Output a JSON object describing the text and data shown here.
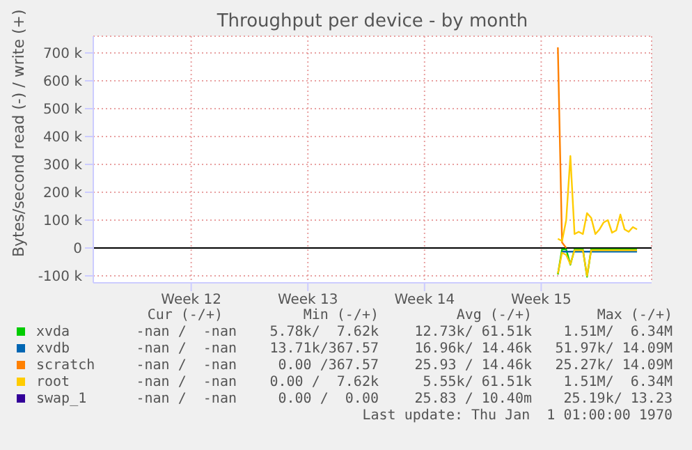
{
  "chart_data": {
    "type": "line",
    "title": "Throughput per device - by month",
    "ylabel": "Bytes/second read (-) / write (+)",
    "categories": [
      null,
      null,
      null,
      null,
      null,
      null,
      null,
      null,
      null,
      null,
      null,
      null,
      null,
      null,
      null,
      null,
      null,
      null,
      null,
      null,
      null,
      null,
      null,
      "Week 12",
      null,
      null,
      null,
      null,
      null,
      null,
      null,
      null,
      null,
      null,
      null,
      null,
      null,
      null,
      null,
      null,
      null,
      null,
      null,
      null,
      null,
      null,
      null,
      null,
      null,
      null,
      null,
      "Week 13",
      null,
      null,
      null,
      null,
      null,
      null,
      null,
      null,
      null,
      null,
      null,
      null,
      null,
      null,
      null,
      null,
      null,
      null,
      null,
      null,
      null,
      null,
      null,
      null,
      null,
      null,
      null,
      "Week 14",
      null,
      null,
      null,
      null,
      null,
      null,
      null,
      null,
      null,
      null,
      null,
      null,
      null,
      null,
      null,
      null,
      null,
      null,
      null,
      null,
      null,
      null,
      null,
      null,
      null,
      null,
      null,
      "Week 15",
      null,
      null,
      null,
      null,
      null,
      null,
      null,
      null,
      null,
      null,
      null,
      null,
      null,
      null,
      null,
      null,
      null,
      null,
      null,
      null,
      null,
      null,
      null,
      null,
      null,
      null
    ],
    "ylim": [
      -125000,
      760000
    ],
    "yticks": [
      {
        "value": -100000,
        "label": "-100 k"
      },
      0,
      {
        "value": 100000,
        "label": "100 k"
      },
      {
        "value": 200000,
        "label": "200 k"
      },
      {
        "value": 300000,
        "label": "300 k"
      },
      {
        "value": 400000,
        "label": "400 k"
      },
      {
        "value": 500000,
        "label": "500 k"
      },
      {
        "value": 600000,
        "label": "600 k"
      },
      {
        "value": 700000,
        "label": "700 k"
      }
    ],
    "grid": true,
    "legend": "bottom",
    "marker": "none",
    "line_style": "solid",
    "ref_lines": [
      {
        "axis": "y",
        "value": 0,
        "color": "#000000"
      }
    ],
    "series": [
      {
        "name": "xvda",
        "color": "#00cc00",
        "values": [
          null,
          null,
          null,
          null,
          null,
          null,
          null,
          null,
          null,
          null,
          null,
          null,
          null,
          null,
          null,
          null,
          null,
          null,
          null,
          null,
          null,
          null,
          null,
          null,
          null,
          null,
          null,
          null,
          null,
          null,
          null,
          null,
          null,
          null,
          null,
          null,
          null,
          null,
          null,
          null,
          null,
          null,
          null,
          null,
          null,
          null,
          null,
          null,
          null,
          null,
          null,
          null,
          null,
          null,
          null,
          null,
          null,
          null,
          null,
          null,
          null,
          null,
          null,
          null,
          null,
          null,
          null,
          null,
          null,
          null,
          null,
          null,
          null,
          null,
          null,
          null,
          null,
          null,
          null,
          null,
          null,
          null,
          null,
          null,
          null,
          null,
          null,
          null,
          null,
          null,
          null,
          null,
          null,
          null,
          null,
          null,
          null,
          null,
          null,
          null,
          null,
          null,
          null,
          null,
          null,
          null,
          null,
          null,
          null,
          null,
          null,
          -95000,
          -5000,
          -5000,
          -60000,
          -5000,
          -5000,
          -5000,
          -103000,
          -5000,
          -5000,
          -5000,
          -5000,
          -5000,
          -5000,
          -5000,
          -5000,
          -5000,
          -5000,
          -5000,
          -5000,
          null,
          null,
          null
        ]
      },
      {
        "name": "xvdb",
        "color": "#0066b3",
        "values": [
          null,
          null,
          null,
          null,
          null,
          null,
          null,
          null,
          null,
          null,
          null,
          null,
          null,
          null,
          null,
          null,
          null,
          null,
          null,
          null,
          null,
          null,
          null,
          null,
          null,
          null,
          null,
          null,
          null,
          null,
          null,
          null,
          null,
          null,
          null,
          null,
          null,
          null,
          null,
          null,
          null,
          null,
          null,
          null,
          null,
          null,
          null,
          null,
          null,
          null,
          null,
          null,
          null,
          null,
          null,
          null,
          null,
          null,
          null,
          null,
          null,
          null,
          null,
          null,
          null,
          null,
          null,
          null,
          null,
          null,
          null,
          null,
          null,
          null,
          null,
          null,
          null,
          null,
          null,
          null,
          null,
          null,
          null,
          null,
          null,
          null,
          null,
          null,
          null,
          null,
          null,
          null,
          null,
          null,
          null,
          null,
          null,
          null,
          null,
          null,
          null,
          null,
          null,
          null,
          null,
          null,
          null,
          null,
          null,
          null,
          null,
          null,
          -13000,
          -13000,
          -13000,
          -13000,
          -13000,
          -13000,
          -13000,
          -13000,
          -13000,
          -13000,
          -13000,
          -13000,
          -13000,
          -13000,
          -13000,
          -13000,
          -13000,
          -13000,
          -13000,
          null,
          null,
          null
        ]
      },
      {
        "name": "scratch",
        "color": "#ff8000",
        "values": [
          null,
          null,
          null,
          null,
          null,
          null,
          null,
          null,
          null,
          null,
          null,
          null,
          null,
          null,
          null,
          null,
          null,
          null,
          null,
          null,
          null,
          null,
          null,
          null,
          null,
          null,
          null,
          null,
          null,
          null,
          null,
          null,
          null,
          null,
          null,
          null,
          null,
          null,
          null,
          null,
          null,
          null,
          null,
          null,
          null,
          null,
          null,
          null,
          null,
          null,
          null,
          null,
          null,
          null,
          null,
          null,
          null,
          null,
          null,
          null,
          null,
          null,
          null,
          null,
          null,
          null,
          null,
          null,
          null,
          null,
          null,
          null,
          null,
          null,
          null,
          null,
          null,
          null,
          null,
          null,
          null,
          null,
          null,
          null,
          null,
          null,
          null,
          null,
          null,
          null,
          null,
          null,
          null,
          null,
          null,
          null,
          null,
          null,
          null,
          null,
          null,
          null,
          null,
          null,
          null,
          null,
          null,
          null,
          null,
          null,
          null,
          720000,
          20000,
          0,
          null,
          null,
          null,
          null,
          null,
          null,
          null,
          null,
          null,
          null,
          null,
          null,
          null,
          null,
          null,
          null,
          null,
          null,
          null,
          null
        ]
      },
      {
        "name": "root",
        "color": "#ffcc00",
        "values": [
          null,
          null,
          null,
          null,
          null,
          null,
          null,
          null,
          null,
          null,
          null,
          null,
          null,
          null,
          null,
          null,
          null,
          null,
          null,
          null,
          null,
          null,
          null,
          null,
          null,
          null,
          null,
          null,
          null,
          null,
          null,
          null,
          null,
          null,
          null,
          null,
          null,
          null,
          null,
          null,
          null,
          null,
          null,
          null,
          null,
          null,
          null,
          null,
          null,
          null,
          null,
          null,
          null,
          null,
          null,
          null,
          null,
          null,
          null,
          null,
          null,
          null,
          null,
          null,
          null,
          null,
          null,
          null,
          null,
          null,
          null,
          null,
          null,
          null,
          null,
          null,
          null,
          null,
          null,
          null,
          null,
          null,
          null,
          null,
          null,
          null,
          null,
          null,
          null,
          null,
          null,
          null,
          null,
          null,
          null,
          null,
          null,
          null,
          null,
          null,
          null,
          null,
          null,
          null,
          null,
          null,
          null,
          null,
          null,
          null,
          null,
          33000,
          25000,
          100000,
          330000,
          50000,
          58000,
          50000,
          125000,
          108000,
          50000,
          67000,
          92000,
          100000,
          55000,
          63000,
          120000,
          67000,
          58000,
          75000,
          67000,
          null,
          null,
          null
        ]
      },
      {
        "color": "#ffcc00",
        "values": [
          null,
          null,
          null,
          null,
          null,
          null,
          null,
          null,
          null,
          null,
          null,
          null,
          null,
          null,
          null,
          null,
          null,
          null,
          null,
          null,
          null,
          null,
          null,
          null,
          null,
          null,
          null,
          null,
          null,
          null,
          null,
          null,
          null,
          null,
          null,
          null,
          null,
          null,
          null,
          null,
          null,
          null,
          null,
          null,
          null,
          null,
          null,
          null,
          null,
          null,
          null,
          null,
          null,
          null,
          null,
          null,
          null,
          null,
          null,
          null,
          null,
          null,
          null,
          null,
          null,
          null,
          null,
          null,
          null,
          null,
          null,
          null,
          null,
          null,
          null,
          null,
          null,
          null,
          null,
          null,
          null,
          null,
          null,
          null,
          null,
          null,
          null,
          null,
          null,
          null,
          null,
          null,
          null,
          null,
          null,
          null,
          null,
          null,
          null,
          null,
          null,
          null,
          null,
          null,
          null,
          null,
          null,
          null,
          null,
          null,
          null,
          -92000,
          -17000,
          -25000,
          -58000,
          -8000,
          -8000,
          -8000,
          -100000,
          -8000,
          -8000,
          -8000,
          -8000,
          -8000,
          -8000,
          -8000,
          -8000,
          -8000,
          -8000,
          -8000,
          -8000,
          null,
          null,
          null
        ]
      },
      {
        "name": "swap_1",
        "color": "#330099",
        "values": [
          null,
          null,
          null,
          null,
          null,
          null,
          null,
          null,
          null,
          null,
          null,
          null,
          null,
          null,
          null,
          null,
          null,
          null,
          null,
          null,
          null,
          null,
          null,
          null,
          null,
          null,
          null,
          null,
          null,
          null,
          null,
          null,
          null,
          null,
          null,
          null,
          null,
          null,
          null,
          null,
          null,
          null,
          null,
          null,
          null,
          null,
          null,
          null,
          null,
          null,
          null,
          null,
          null,
          null,
          null,
          null,
          null,
          null,
          null,
          null,
          null,
          null,
          null,
          null,
          null,
          null,
          null,
          null,
          null,
          null,
          null,
          null,
          null,
          null,
          null,
          null,
          null,
          null,
          null,
          null,
          null,
          null,
          null,
          null,
          null,
          null,
          null,
          null,
          null,
          null,
          null,
          null,
          null,
          null,
          null,
          null,
          null,
          null,
          null,
          null,
          null,
          null,
          null,
          null,
          null,
          null,
          null,
          null,
          null,
          null,
          null,
          null,
          null,
          null,
          null,
          null,
          null,
          null,
          null,
          null,
          null,
          null,
          null,
          null,
          null,
          null,
          null,
          null,
          null,
          null,
          null,
          null,
          null,
          null
        ]
      }
    ],
    "annotations": [
      "Cur (-/+)",
      "Min (-/+)",
      "Avg (-/+)",
      "Max (-/+)",
      "-nan /  -nan",
      "5.78k/  7.62k",
      "12.73k/ 61.51k",
      "1.51M/  6.34M",
      "-nan /  -nan",
      "13.71k/367.57",
      "16.96k/ 14.46k",
      "51.97k/ 14.09M",
      "-nan /  -nan",
      "0.00 /367.57",
      "25.93 / 14.46k",
      "25.27k/ 14.09M",
      "-nan /  -nan",
      "0.00 /  7.62k",
      "5.55k/ 61.51k",
      "1.51M/  6.34M",
      "-nan /  -nan",
      "0.00 /  0.00",
      "25.83 / 10.40m",
      "25.19k/ 13.23",
      "Last update: Thu Jan  1 01:00:00 1970"
    ]
  }
}
